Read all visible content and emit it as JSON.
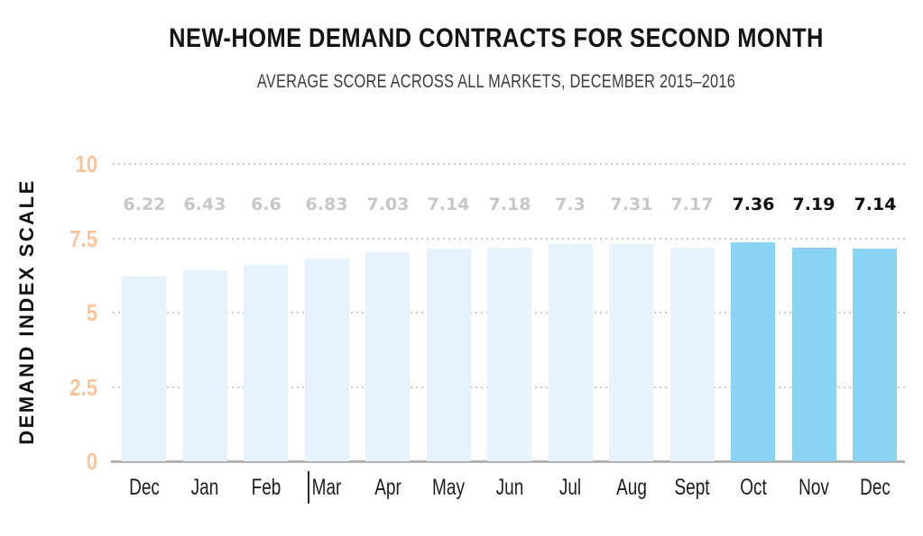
{
  "header": {
    "title": "NEW-HOME DEMAND CONTRACTS FOR SECOND MONTH",
    "subtitle": "AVERAGE SCORE ACROSS ALL MARKETS, DECEMBER 2015–2016"
  },
  "chart_data": {
    "type": "bar",
    "title": "NEW-HOME DEMAND CONTRACTS FOR SECOND MONTH",
    "subtitle": "AVERAGE SCORE ACROSS ALL MARKETS, DECEMBER 2015–2016",
    "xlabel": "",
    "ylabel": "DEMAND INDEX SCALE",
    "categories": [
      "Dec",
      "Jan",
      "Feb",
      "Mar",
      "Apr",
      "May",
      "Jun",
      "Jul",
      "Aug",
      "Sept",
      "Oct",
      "Nov",
      "Dec"
    ],
    "values": [
      6.22,
      6.43,
      6.6,
      6.83,
      7.03,
      7.14,
      7.18,
      7.3,
      7.31,
      7.17,
      7.36,
      7.19,
      7.14
    ],
    "value_labels": [
      "6.22",
      "6.43",
      "6.6",
      "6.83",
      "7.03",
      "7.14",
      "7.18",
      "7.3",
      "7.31",
      "7.17",
      "7.36",
      "7.19",
      "7.14"
    ],
    "highlight_from_index": 10,
    "ylim": [
      0,
      10
    ],
    "yticks": [
      0,
      2.5,
      5,
      7.5,
      10
    ],
    "ytick_labels": [
      "0",
      "2.5",
      "5",
      "7.5",
      "10"
    ],
    "grid": "horizontal-dotted",
    "legend": "none",
    "colors": {
      "bar_normal": "#E4F3FC",
      "bar_highlight": "#8BD3F5",
      "ytick_label": "#FAC49B",
      "value_label_normal": "#C7C7C8",
      "value_label_highlight": "#0f0f0f",
      "gridline": "#CBCBCB",
      "baseline": "#B3B3B3"
    }
  }
}
